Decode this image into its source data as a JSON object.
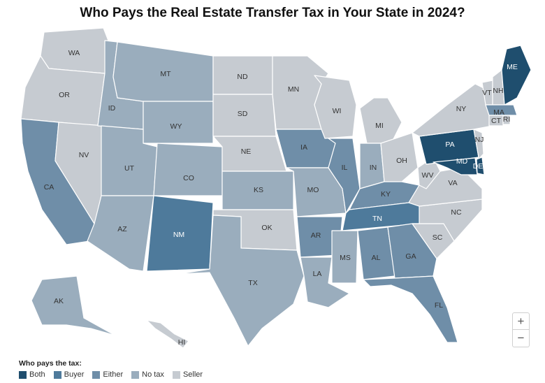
{
  "title": "Who Pays the Real Estate Transfer Tax in Your State in 2024?",
  "colors": {
    "Both": "#1f4e6e",
    "Buyer": "#4e7a9b",
    "Either": "#6f8ea8",
    "No tax": "#9aadbd",
    "Seller": "#c6cbd1"
  },
  "legend": {
    "title": "Who pays the tax:",
    "items": [
      "Both",
      "Buyer",
      "Either",
      "No tax",
      "Seller"
    ]
  },
  "zoom": {
    "in_label": "+",
    "out_label": "−"
  },
  "states": [
    {
      "code": "WA",
      "category": "Seller"
    },
    {
      "code": "OR",
      "category": "Seller"
    },
    {
      "code": "CA",
      "category": "Either"
    },
    {
      "code": "NV",
      "category": "Seller"
    },
    {
      "code": "ID",
      "category": "No tax"
    },
    {
      "code": "MT",
      "category": "No tax"
    },
    {
      "code": "WY",
      "category": "No tax"
    },
    {
      "code": "UT",
      "category": "No tax"
    },
    {
      "code": "AZ",
      "category": "No tax"
    },
    {
      "code": "CO",
      "category": "No tax"
    },
    {
      "code": "NM",
      "category": "Buyer"
    },
    {
      "code": "ND",
      "category": "Seller"
    },
    {
      "code": "SD",
      "category": "Seller"
    },
    {
      "code": "NE",
      "category": "Seller"
    },
    {
      "code": "KS",
      "category": "No tax"
    },
    {
      "code": "OK",
      "category": "Seller"
    },
    {
      "code": "TX",
      "category": "No tax"
    },
    {
      "code": "MN",
      "category": "Seller"
    },
    {
      "code": "IA",
      "category": "Either"
    },
    {
      "code": "MO",
      "category": "No tax"
    },
    {
      "code": "AR",
      "category": "Either"
    },
    {
      "code": "LA",
      "category": "No tax"
    },
    {
      "code": "WI",
      "category": "Seller"
    },
    {
      "code": "IL",
      "category": "Either"
    },
    {
      "code": "MI",
      "category": "Seller"
    },
    {
      "code": "IN",
      "category": "No tax"
    },
    {
      "code": "OH",
      "category": "Seller"
    },
    {
      "code": "KY",
      "category": "Either"
    },
    {
      "code": "TN",
      "category": "Buyer"
    },
    {
      "code": "MS",
      "category": "No tax"
    },
    {
      "code": "AL",
      "category": "Either"
    },
    {
      "code": "GA",
      "category": "Either"
    },
    {
      "code": "FL",
      "category": "Either"
    },
    {
      "code": "SC",
      "category": "Seller"
    },
    {
      "code": "NC",
      "category": "Seller"
    },
    {
      "code": "VA",
      "category": "Seller"
    },
    {
      "code": "WV",
      "category": "Seller"
    },
    {
      "code": "PA",
      "category": "Both"
    },
    {
      "code": "NY",
      "category": "Seller"
    },
    {
      "code": "NJ",
      "category": "Seller"
    },
    {
      "code": "DE",
      "category": "Both"
    },
    {
      "code": "MD",
      "category": "Both"
    },
    {
      "code": "VT",
      "category": "Seller"
    },
    {
      "code": "NH",
      "category": "Seller"
    },
    {
      "code": "ME",
      "category": "Both"
    },
    {
      "code": "MA",
      "category": "Either"
    },
    {
      "code": "CT",
      "category": "Seller"
    },
    {
      "code": "RI",
      "category": "Seller"
    },
    {
      "code": "AK",
      "category": "No tax"
    },
    {
      "code": "HI",
      "category": "Seller"
    }
  ]
}
